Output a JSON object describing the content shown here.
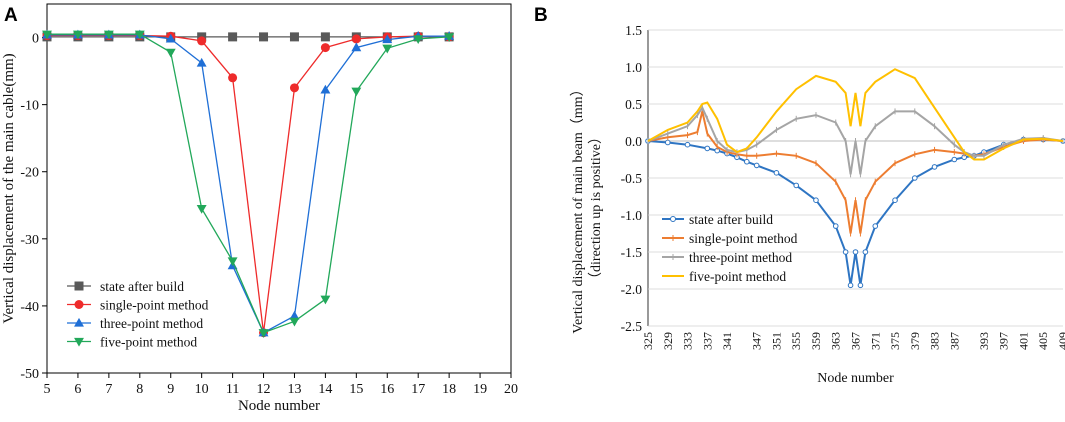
{
  "chart_data": [
    {
      "panel": "A",
      "type": "line",
      "title": "",
      "xlabel": "Node number",
      "ylabel": "Vertical displacement of the main cable(mm)",
      "xlim": [
        5,
        20
      ],
      "ylim": [
        -50,
        5
      ],
      "xticks": [
        5,
        6,
        7,
        8,
        9,
        10,
        11,
        12,
        13,
        14,
        15,
        16,
        17,
        18,
        19,
        20
      ],
      "yticks": [
        0,
        -10,
        -20,
        -30,
        -40,
        -50
      ],
      "legend_position": "bottom-left",
      "series": [
        {
          "name": "state after build",
          "color": "#595959",
          "marker": "square",
          "x": [
            5,
            6,
            7,
            8,
            9,
            10,
            11,
            12,
            13,
            14,
            15,
            16,
            17,
            18
          ],
          "y": [
            0.1,
            0.1,
            0.1,
            0.1,
            0.1,
            0.1,
            0.1,
            0.1,
            0.1,
            0.1,
            0.1,
            0.1,
            0.1,
            0.1
          ]
        },
        {
          "name": "single-point method",
          "color": "#ee2b2b",
          "marker": "circle",
          "x": [
            5,
            6,
            7,
            8,
            9,
            10,
            11,
            12,
            13,
            14,
            15,
            16,
            17,
            18
          ],
          "y": [
            0.3,
            0.3,
            0.3,
            0.3,
            0.2,
            -0.5,
            -6,
            -44,
            -7.5,
            -1.5,
            -0.2,
            0.1,
            0.2,
            0.1
          ]
        },
        {
          "name": "three-point method",
          "color": "#1f6fd6",
          "marker": "triangle-up",
          "x": [
            5,
            6,
            7,
            8,
            9,
            10,
            11,
            12,
            13,
            14,
            15,
            16,
            17,
            18
          ],
          "y": [
            0.4,
            0.4,
            0.4,
            0.4,
            -0.2,
            -3.8,
            -34,
            -44,
            -41.5,
            -7.8,
            -1.5,
            -0.3,
            0.2,
            0.2
          ]
        },
        {
          "name": "five-point method",
          "color": "#22a85a",
          "marker": "triangle-down",
          "x": [
            5,
            6,
            7,
            8,
            9,
            10,
            11,
            12,
            13,
            14,
            15,
            16,
            17,
            18
          ],
          "y": [
            0.5,
            0.5,
            0.5,
            0.5,
            -2.2,
            -25.5,
            -33.3,
            -44,
            -42.3,
            -39,
            -8,
            -1.6,
            -0.2,
            0.1
          ]
        }
      ]
    },
    {
      "panel": "B",
      "type": "line",
      "title": "",
      "xlabel": "Node number",
      "ylabel_line1": "Vertical displacement of main beam（mm）",
      "ylabel_line2": "（direction up is positive）",
      "xlim": [
        325,
        409
      ],
      "ylim": [
        -2.5,
        1.5
      ],
      "xticks": [
        325,
        329,
        333,
        337,
        341,
        347,
        351,
        355,
        359,
        363,
        367,
        371,
        375,
        379,
        383,
        387,
        393,
        397,
        401,
        405,
        409
      ],
      "yticks": [
        "1.5",
        "1.0",
        "0.5",
        "0.0",
        "-0.5",
        "-1.0",
        "-1.5",
        "-2.0",
        "-2.5"
      ],
      "legend_position": "bottom-left",
      "series": [
        {
          "name": "state after build",
          "color": "#2e75c3",
          "marker": "circle",
          "x": [
            325,
            329,
            333,
            337,
            339,
            341,
            343,
            345,
            347,
            351,
            355,
            359,
            363,
            365,
            366,
            367,
            368,
            369,
            371,
            375,
            379,
            383,
            387,
            389,
            391,
            393,
            397,
            401,
            405,
            409
          ],
          "y": [
            0.0,
            -0.02,
            -0.05,
            -0.1,
            -0.13,
            -0.17,
            -0.22,
            -0.28,
            -0.33,
            -0.43,
            -0.6,
            -0.8,
            -1.15,
            -1.5,
            -1.95,
            -1.5,
            -1.95,
            -1.5,
            -1.15,
            -0.8,
            -0.5,
            -0.35,
            -0.25,
            -0.22,
            -0.2,
            -0.15,
            -0.05,
            0.02,
            0.02,
            0.0
          ]
        },
        {
          "name": "single-point method",
          "color": "#ed7d31",
          "marker": "dash",
          "x": [
            325,
            329,
            333,
            335,
            336,
            337,
            339,
            341,
            343,
            345,
            347,
            351,
            355,
            359,
            363,
            365,
            366,
            367,
            368,
            369,
            371,
            375,
            379,
            383,
            387,
            389,
            391,
            393,
            397,
            401,
            405,
            409
          ],
          "y": [
            0.0,
            0.05,
            0.08,
            0.12,
            0.4,
            0.1,
            -0.08,
            -0.15,
            -0.18,
            -0.2,
            -0.2,
            -0.17,
            -0.2,
            -0.3,
            -0.55,
            -0.8,
            -1.25,
            -0.8,
            -1.25,
            -0.8,
            -0.55,
            -0.3,
            -0.18,
            -0.12,
            -0.15,
            -0.17,
            -0.2,
            -0.18,
            -0.08,
            0.0,
            0.02,
            0.0
          ]
        },
        {
          "name": "three-point method",
          "color": "#a5a5a5",
          "marker": "dash",
          "x": [
            325,
            329,
            333,
            335,
            336,
            337,
            339,
            341,
            343,
            345,
            347,
            351,
            355,
            359,
            363,
            365,
            366,
            367,
            368,
            369,
            371,
            375,
            379,
            383,
            387,
            389,
            391,
            393,
            397,
            401,
            405,
            409
          ],
          "y": [
            0.0,
            0.1,
            0.2,
            0.35,
            0.45,
            0.3,
            0.0,
            -0.12,
            -0.15,
            -0.12,
            -0.05,
            0.15,
            0.3,
            0.35,
            0.25,
            0.0,
            -0.45,
            0.0,
            -0.45,
            0.0,
            0.2,
            0.4,
            0.4,
            0.2,
            -0.05,
            -0.15,
            -0.2,
            -0.2,
            -0.05,
            0.03,
            0.04,
            0.0
          ]
        },
        {
          "name": "five-point method",
          "color": "#ffc000",
          "marker": "none",
          "x": [
            325,
            329,
            333,
            335,
            336,
            337,
            339,
            341,
            343,
            345,
            347,
            351,
            355,
            359,
            363,
            365,
            366,
            367,
            368,
            369,
            371,
            375,
            379,
            383,
            387,
            389,
            391,
            393,
            397,
            401,
            405,
            409
          ],
          "y": [
            0.0,
            0.15,
            0.25,
            0.4,
            0.5,
            0.52,
            0.3,
            -0.05,
            -0.15,
            -0.1,
            0.05,
            0.4,
            0.7,
            0.88,
            0.8,
            0.65,
            0.2,
            0.65,
            0.2,
            0.65,
            0.8,
            0.97,
            0.85,
            0.45,
            0.05,
            -0.15,
            -0.25,
            -0.25,
            -0.1,
            0.02,
            0.03,
            0.0
          ]
        }
      ]
    }
  ]
}
